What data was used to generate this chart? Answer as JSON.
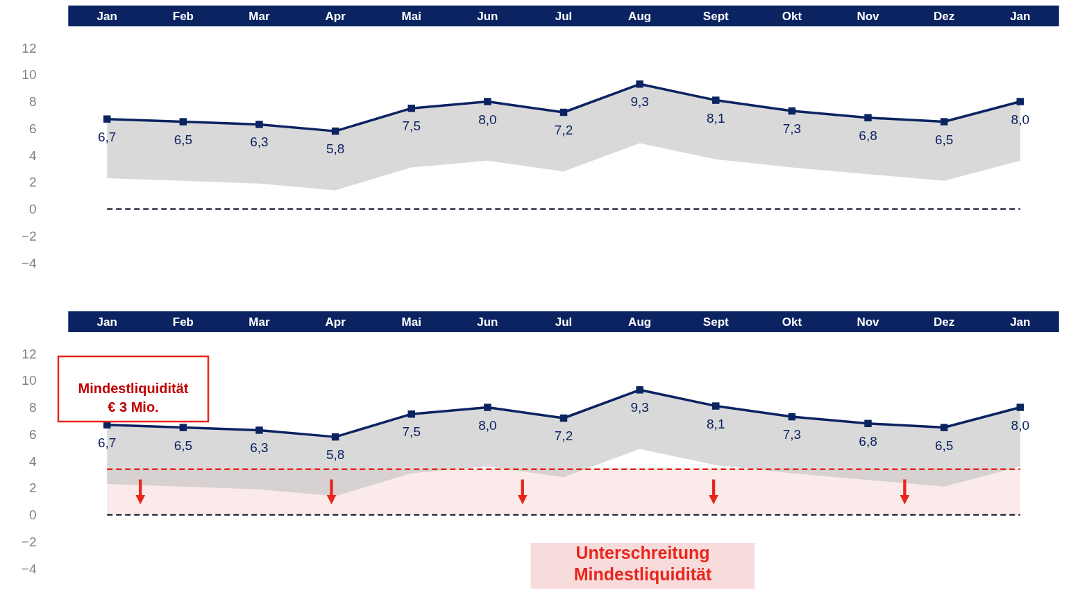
{
  "chart_data": [
    {
      "type": "line",
      "categories": [
        "Jan",
        "Feb",
        "Mar",
        "Apr",
        "Mai",
        "Jun",
        "Jul",
        "Aug",
        "Sept",
        "Okt",
        "Nov",
        "Dez",
        "Jan"
      ],
      "series": [
        {
          "color": "#0b2361",
          "values": [
            6.7,
            6.5,
            6.3,
            5.8,
            7.5,
            8.0,
            7.2,
            9.3,
            8.1,
            7.3,
            6.8,
            6.5,
            8.0
          ],
          "lower": [
            2.3,
            2.1,
            1.9,
            1.4,
            3.1,
            3.6,
            2.8,
            4.9,
            3.7,
            3.1,
            2.6,
            2.1,
            3.6
          ],
          "upper": [
            6.7,
            6.5,
            6.3,
            5.8,
            7.5,
            8.0,
            7.2,
            9.3,
            8.1,
            7.3,
            6.8,
            6.5,
            8.0
          ]
        }
      ],
      "value_labels": [
        "6,7",
        "6,5",
        "6,3",
        "5,8",
        "7,5",
        "8,0",
        "7,2",
        "9,3",
        "8,1",
        "7,3",
        "6,8",
        "6,5",
        "8,0"
      ],
      "marker": "square",
      "ylim": [
        -4,
        12
      ],
      "yticks": [
        -4,
        -2,
        0,
        2,
        4,
        6,
        8,
        10,
        12
      ],
      "ref_lines": [
        {
          "axis": "y",
          "value": 0,
          "color": "#2b2d42",
          "line_style": "dashed"
        }
      ]
    },
    {
      "type": "line",
      "categories": [
        "Jan",
        "Feb",
        "Mar",
        "Apr",
        "Mai",
        "Jun",
        "Jul",
        "Aug",
        "Sept",
        "Okt",
        "Nov",
        "Dez",
        "Jan"
      ],
      "series": [
        {
          "color": "#0b2361",
          "values": [
            6.7,
            6.5,
            6.3,
            5.8,
            7.5,
            8.0,
            7.2,
            9.3,
            8.1,
            7.3,
            6.8,
            6.5,
            8.0
          ],
          "lower": [
            2.3,
            2.1,
            1.9,
            1.4,
            3.1,
            3.6,
            2.8,
            4.9,
            3.7,
            3.1,
            2.6,
            2.1,
            3.6
          ],
          "upper": [
            6.7,
            6.5,
            6.3,
            5.8,
            7.5,
            8.0,
            7.2,
            9.3,
            8.1,
            7.3,
            6.8,
            6.5,
            8.0
          ]
        }
      ],
      "value_labels": [
        "6,7",
        "6,5",
        "6,3",
        "5,8",
        "7,5",
        "8,0",
        "7,2",
        "9,3",
        "8,1",
        "7,3",
        "6,8",
        "6,5",
        "8,0"
      ],
      "marker": "square",
      "ylim": [
        -4,
        12
      ],
      "yticks": [
        -4,
        -2,
        0,
        2,
        4,
        6,
        8,
        10,
        12
      ],
      "ref_lines": [
        {
          "axis": "y",
          "value": 0,
          "color": "#2b2d42",
          "line_style": "dashed"
        },
        {
          "axis": "y",
          "value": 3.4,
          "color": "#e8261c",
          "line_style": "dashed",
          "label": "Mindestliquidität\n€ 3 Mio."
        }
      ],
      "bands": [
        {
          "axis": "y",
          "from": 0,
          "to": 3.4,
          "color": "#fbeaea",
          "label": "Unterschreitung\nMindestliquidität"
        }
      ]
    }
  ]
}
